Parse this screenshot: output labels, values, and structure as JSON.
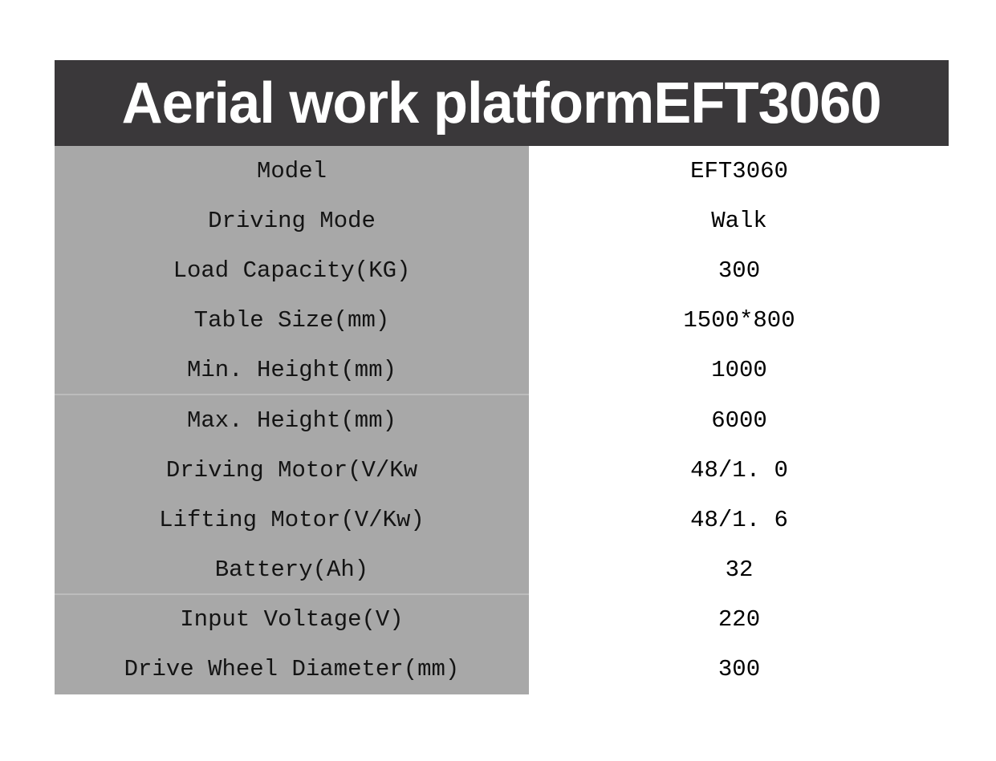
{
  "header": {
    "title": "Aerial work platformEFT3060"
  },
  "table": {
    "rows": [
      {
        "label": "Model",
        "value": "EFT3060",
        "divider_after": false
      },
      {
        "label": "Driving Mode",
        "value": "Walk",
        "divider_after": false
      },
      {
        "label": "Load Capacity(KG)",
        "value": "300",
        "divider_after": false
      },
      {
        "label": "Table Size(mm)",
        "value": "1500*800",
        "divider_after": false
      },
      {
        "label": "Min. Height(mm)",
        "value": "1000",
        "divider_after": true
      },
      {
        "label": "Max. Height(mm)",
        "value": "6000",
        "divider_after": false
      },
      {
        "label": "Driving Motor(V/Kw",
        "value": "48/1. 0",
        "divider_after": false
      },
      {
        "label": "Lifting Motor(V/Kw)",
        "value": "48/1. 6",
        "divider_after": false
      },
      {
        "label": "Battery(Ah)",
        "value": "32",
        "divider_after": true
      },
      {
        "label": "Input Voltage(V)",
        "value": "220",
        "divider_after": false
      },
      {
        "label": "Drive Wheel Diameter(mm)",
        "value": "300",
        "divider_after": false
      }
    ]
  },
  "colors": {
    "header-bg": "#3a383a",
    "header-text": "#ffffff",
    "label-bg": "#a8a8a8",
    "divider": "#bcbcbc",
    "label-text": "#141414",
    "value-text": "#000000",
    "page-bg": "#ffffff"
  }
}
